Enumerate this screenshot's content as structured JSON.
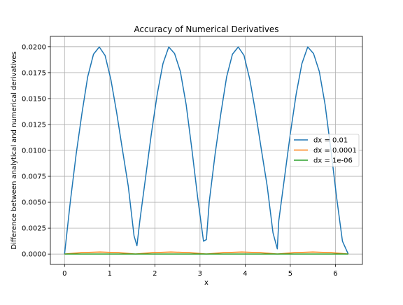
{
  "chart_data": {
    "type": "line",
    "title": "Accuracy of Numerical Derivatives",
    "xlabel": "x",
    "ylabel": "Difference between analytical and numerical derivatives",
    "xlim": [
      -0.3142,
      6.5973
    ],
    "ylim": [
      -0.001,
      0.021
    ],
    "xticks": [
      0,
      1,
      2,
      3,
      4,
      5,
      6
    ],
    "xtick_labels": [
      "0",
      "1",
      "2",
      "3",
      "4",
      "5",
      "6"
    ],
    "yticks": [
      0,
      0.0025,
      0.005,
      0.0075,
      0.01,
      0.0125,
      0.015,
      0.0175,
      0.02
    ],
    "ytick_labels": [
      "0.0000",
      "0.0025",
      "0.0050",
      "0.0075",
      "0.0100",
      "0.0125",
      "0.0150",
      "0.0175",
      "0.0200"
    ],
    "grid": true,
    "legend_position": "center-right",
    "series": [
      {
        "name": "dx = 0.01",
        "color": "#1f77b4",
        "x": [
          0,
          0.1282,
          0.2565,
          0.3847,
          0.5129,
          0.6411,
          0.7694,
          0.8976,
          1.0258,
          1.1541,
          1.2823,
          1.4105,
          1.5387,
          1.6031,
          1.667,
          1.7952,
          1.9234,
          2.0517,
          2.1799,
          2.3081,
          2.4363,
          2.5646,
          2.6928,
          2.821,
          2.9493,
          3.0775,
          3.1416,
          3.2057,
          3.334,
          3.4622,
          3.5904,
          3.7187,
          3.8469,
          3.9751,
          4.1033,
          4.2316,
          4.3598,
          4.488,
          4.6163,
          4.7123,
          4.7445,
          4.8727,
          5.0009,
          5.1292,
          5.2574,
          5.3856,
          5.5139,
          5.6421,
          5.7703,
          5.8985,
          6.0268,
          6.155,
          6.2832
        ],
        "y": [
          0,
          0.00508,
          0.00963,
          0.01357,
          0.01711,
          0.01928,
          0.01998,
          0.01916,
          0.01684,
          0.01364,
          0.01006,
          0.00656,
          0.00176,
          0.0008,
          0.0032,
          0.00741,
          0.01163,
          0.01541,
          0.01838,
          0.01998,
          0.01935,
          0.01762,
          0.01443,
          0.01008,
          0.00542,
          0.00124,
          0.0014,
          0.00508,
          0.00963,
          0.01357,
          0.01711,
          0.01928,
          0.01998,
          0.01916,
          0.01684,
          0.01364,
          0.01006,
          0.00656,
          0.00206,
          0.0005,
          0.0032,
          0.00741,
          0.01163,
          0.01541,
          0.01838,
          0.01998,
          0.01935,
          0.01762,
          0.01443,
          0.01008,
          0.00542,
          0.00124,
          0
        ]
      },
      {
        "name": "dx = 0.0001",
        "color": "#ff7f0e",
        "x": [
          0,
          0.3927,
          0.7854,
          1.1781,
          1.5708,
          1.9635,
          2.3562,
          2.7489,
          3.1416,
          3.5343,
          3.927,
          4.3197,
          4.7124,
          5.1051,
          5.4978,
          5.8905,
          6.2832
        ],
        "y": [
          0,
          0.00014,
          0.0002,
          0.00014,
          0,
          0.00014,
          0.0002,
          0.00014,
          0,
          0.00014,
          0.0002,
          0.00014,
          0,
          0.00014,
          0.0002,
          0.00014,
          0
        ]
      },
      {
        "name": "dx = 1e-06",
        "color": "#2ca02c",
        "x": [
          0,
          1.5708,
          3.1416,
          4.7124,
          6.2832
        ],
        "y": [
          0,
          0,
          0,
          0,
          0
        ]
      }
    ]
  }
}
